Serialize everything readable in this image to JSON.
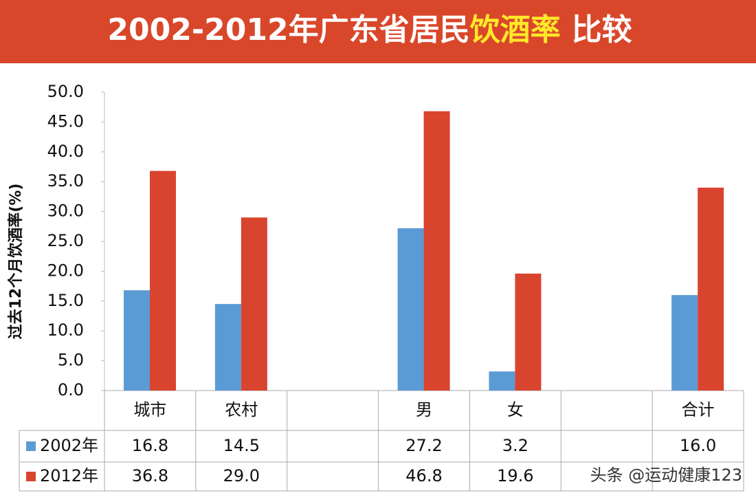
{
  "chart_data": {
    "type": "bar",
    "title": [
      "2002-2012年广东省居民",
      "饮酒率",
      "比较"
    ],
    "y_label": "过去12个月饮酒率(%)",
    "categories": [
      "城市",
      "农村",
      null,
      "男",
      "女",
      null,
      "合计"
    ],
    "series": [
      {
        "name": "2002年",
        "color": "#5b9bd5",
        "values": [
          16.8,
          14.5,
          null,
          27.2,
          3.2,
          null,
          16.0
        ],
        "value_labels": [
          "16.8",
          "14.5",
          null,
          "27.2",
          "3.2",
          null,
          "16.0"
        ]
      },
      {
        "name": "2012年",
        "color": "#d9442f",
        "values": [
          36.8,
          29.0,
          null,
          46.8,
          19.6,
          null,
          34.0
        ],
        "value_labels": [
          "36.8",
          "29.0",
          null,
          "46.8",
          "19.6",
          null,
          null
        ]
      }
    ],
    "ylim": [
      0,
      50
    ],
    "yticks": [
      {
        "value": 0,
        "label": "0.0"
      },
      {
        "value": 5,
        "label": "5.0"
      },
      {
        "value": 10,
        "label": "10.0"
      },
      {
        "value": 15,
        "label": "15.0"
      },
      {
        "value": 20,
        "label": "20.0"
      },
      {
        "value": 25,
        "label": "25.0"
      },
      {
        "value": 30,
        "label": "30.0"
      },
      {
        "value": 35,
        "label": "35.0"
      },
      {
        "value": 40,
        "label": "40.0"
      },
      {
        "value": 45,
        "label": "45.0"
      },
      {
        "value": 50,
        "label": "50.0"
      }
    ],
    "grid": false,
    "watermark": "头条 @运动健康123"
  }
}
